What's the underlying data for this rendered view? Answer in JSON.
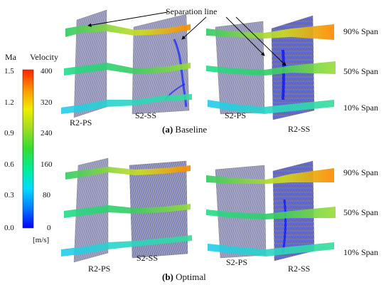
{
  "colorbar": {
    "ma_title": "Ma",
    "velocity_title": "Velocity",
    "unit": "[m/s]",
    "ma_ticks": [
      "1.5",
      "1.2",
      "0.9",
      "0.6",
      "0.3",
      "0.0"
    ],
    "velocity_ticks": [
      "400",
      "320",
      "240",
      "160",
      "80",
      "0"
    ],
    "colors": [
      "#0000ff",
      "#00aaff",
      "#00ffff",
      "#00e08a",
      "#33dd33",
      "#aadd22",
      "#ffee00",
      "#ff9900",
      "#ff3300"
    ]
  },
  "annotation": {
    "separation_line": "Separation line"
  },
  "spans": [
    "90% Span",
    "50% Span",
    "10% Span"
  ],
  "panels": [
    {
      "caption_letter": "(a)",
      "caption_text": " Baseline",
      "blade_labels": [
        "R2-PS",
        "S2-SS",
        "S2-PS",
        "R2-SS"
      ]
    },
    {
      "caption_letter": "(b)",
      "caption_text": " Optimal",
      "blade_labels": [
        "R2-PS",
        "S2-SS",
        "S2-PS",
        "R2-SS"
      ]
    }
  ],
  "colors": {
    "blade_surface": "#9a9ab0",
    "streamline_blue": "#2b3ad8",
    "annotation_arrow": "#000000"
  }
}
